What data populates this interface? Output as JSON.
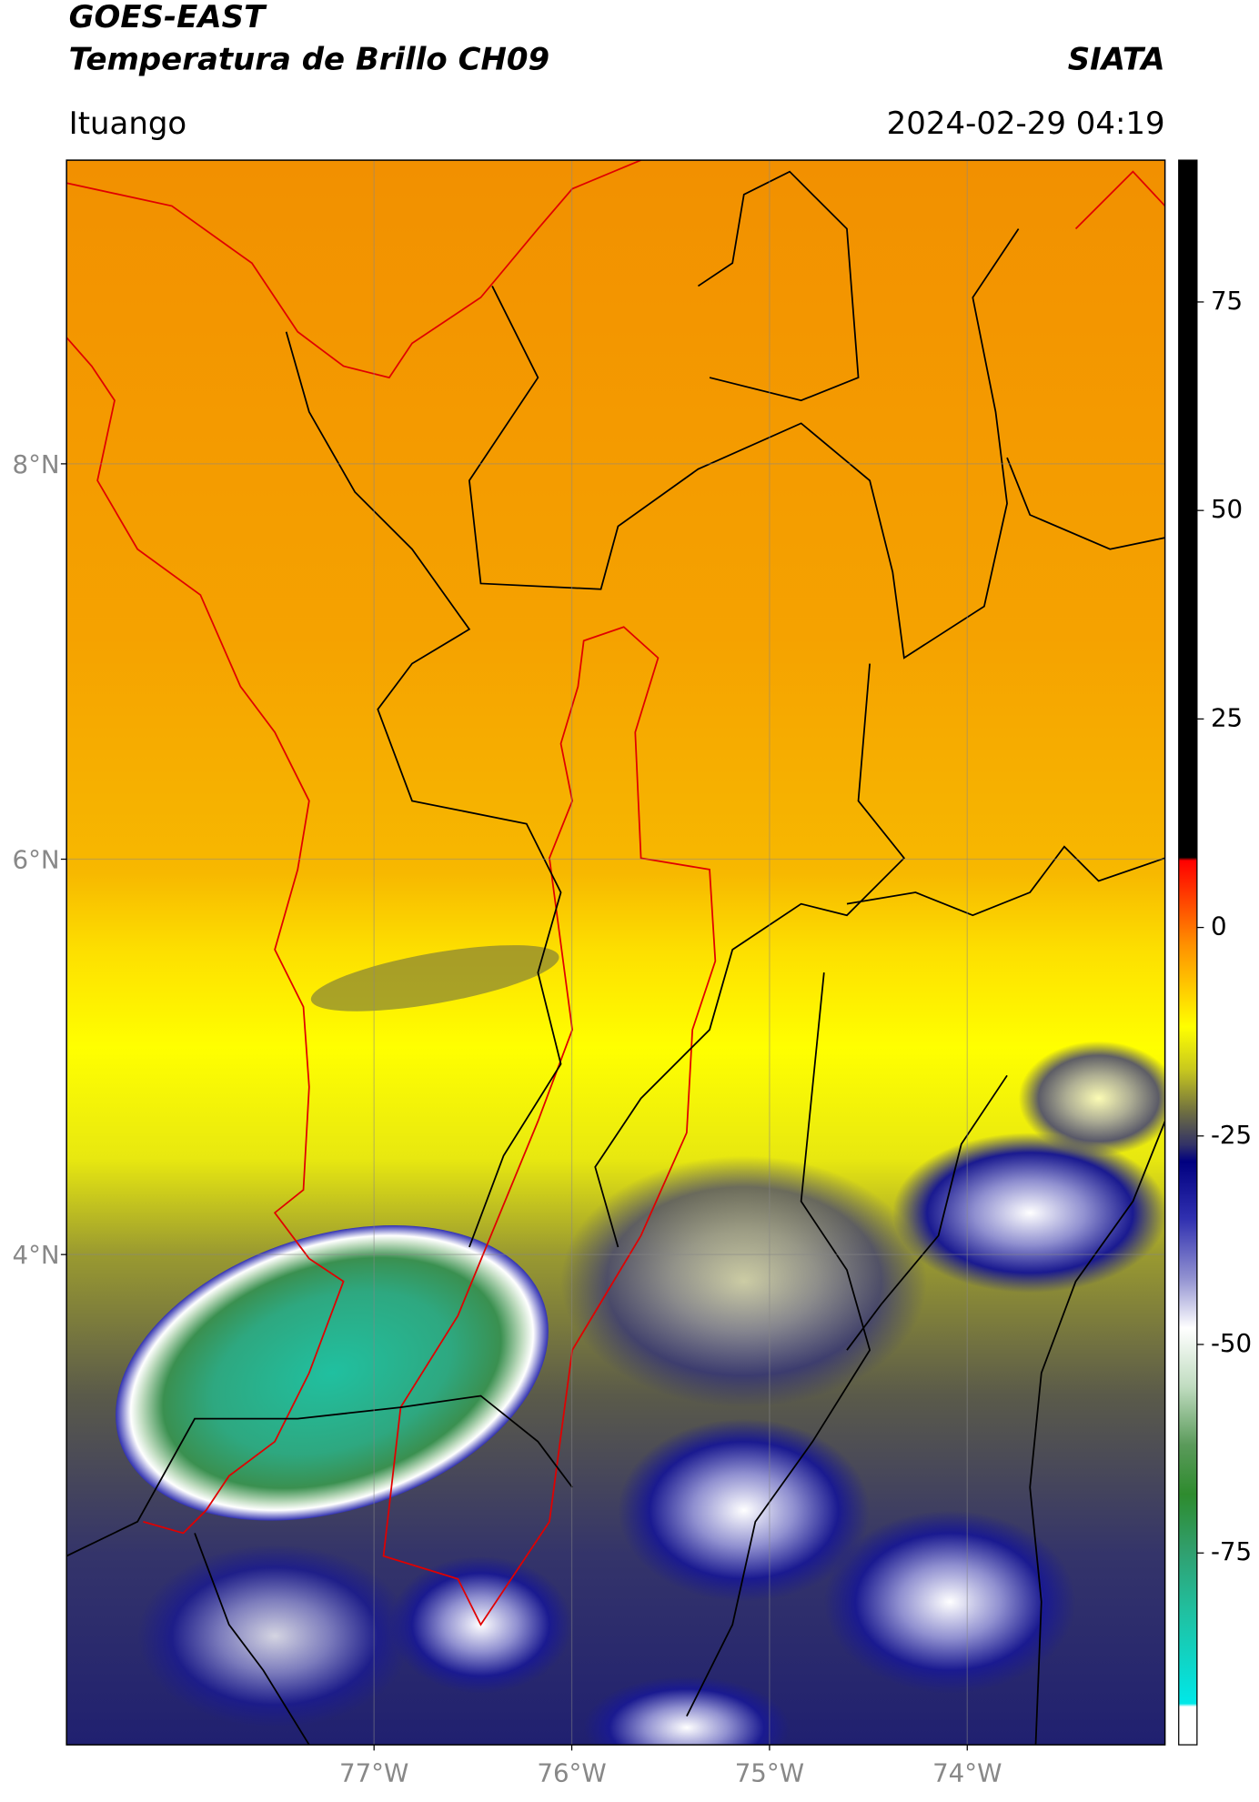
{
  "header": {
    "satellite": "GOES-EAST",
    "product": "Temperatura de Brillo CH09",
    "institution": "SIATA",
    "region": "Ituango",
    "timestamp": "2024-02-29 04:19"
  },
  "map": {
    "lon_range": [
      -78.555,
      -73.0
    ],
    "lat_range": [
      1.52,
      9.536
    ],
    "lon_ticks": [
      {
        "value": -77,
        "label": "77°W"
      },
      {
        "value": -76,
        "label": "76°W"
      },
      {
        "value": -75,
        "label": "75°W"
      },
      {
        "value": -74,
        "label": "74°W"
      }
    ],
    "lat_ticks": [
      {
        "value": 8,
        "label": "8°N"
      },
      {
        "value": 6,
        "label": "6°N"
      },
      {
        "value": 4,
        "label": "4°N"
      }
    ]
  },
  "colorbar": {
    "range": [
      -98,
      92
    ],
    "ticks": [
      75,
      50,
      25,
      0,
      -25,
      -50,
      -75
    ]
  }
}
